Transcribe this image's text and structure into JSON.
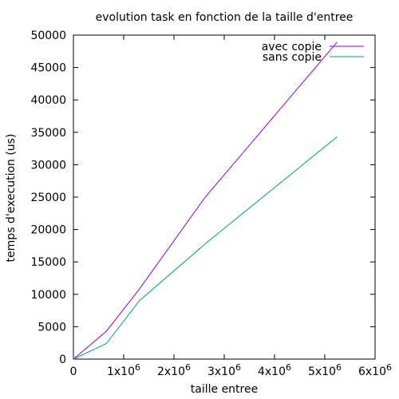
{
  "chart_data": {
    "type": "line",
    "title": "evolution task en fonction de la taille d'entree",
    "xlabel": "taille entree",
    "ylabel": "temps d'execution (us)",
    "xlim": [
      0,
      6000000
    ],
    "ylim": [
      0,
      50000
    ],
    "grid": false,
    "legend_position": "top-right",
    "x_ticks": [
      {
        "value": 0,
        "base": "0",
        "exp": ""
      },
      {
        "value": 1000000,
        "base": "1x10",
        "exp": "6"
      },
      {
        "value": 2000000,
        "base": "2x10",
        "exp": "6"
      },
      {
        "value": 3000000,
        "base": "3x10",
        "exp": "6"
      },
      {
        "value": 4000000,
        "base": "4x10",
        "exp": "6"
      },
      {
        "value": 5000000,
        "base": "5x10",
        "exp": "6"
      },
      {
        "value": 6000000,
        "base": "6x10",
        "exp": "6"
      }
    ],
    "y_ticks": [
      {
        "value": 0,
        "label": "0"
      },
      {
        "value": 5000,
        "label": "5000"
      },
      {
        "value": 10000,
        "label": "10000"
      },
      {
        "value": 15000,
        "label": "15000"
      },
      {
        "value": 20000,
        "label": "20000"
      },
      {
        "value": 25000,
        "label": "25000"
      },
      {
        "value": 30000,
        "label": "30000"
      },
      {
        "value": 35000,
        "label": "35000"
      },
      {
        "value": 40000,
        "label": "40000"
      },
      {
        "value": 45000,
        "label": "45000"
      },
      {
        "value": 50000,
        "label": "50000"
      }
    ],
    "series": [
      {
        "name": "avec copie",
        "color": "#9400d3",
        "x": [
          0,
          655360,
          1310720,
          2621440,
          5242880
        ],
        "y": [
          0,
          4300,
          10800,
          25000,
          48900
        ]
      },
      {
        "name": "sans copie",
        "color": "#009e73",
        "x": [
          0,
          655360,
          1310720,
          2621440,
          5242880
        ],
        "y": [
          0,
          2400,
          9000,
          17800,
          34300
        ]
      }
    ]
  }
}
